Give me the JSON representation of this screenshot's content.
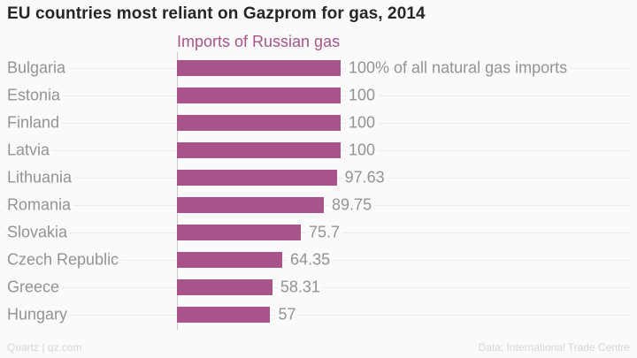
{
  "header": {
    "title": "EU countries most reliant on Gazprom for gas, 2014"
  },
  "chart_data": {
    "type": "bar",
    "orientation": "horizontal",
    "title": "EU countries most reliant on Gazprom for gas, 2014",
    "series_label": "Imports of Russian gas",
    "categories": [
      "Bulgaria",
      "Estonia",
      "Finland",
      "Latvia",
      "Lithuania",
      "Romania",
      "Slovakia",
      "Czech Republic",
      "Greece",
      "Hungary"
    ],
    "values": [
      100,
      100,
      100,
      100,
      97.63,
      89.75,
      75.7,
      64.35,
      58.31,
      57
    ],
    "value_labels": [
      "100% of all natural gas imports",
      "100",
      "100",
      "100",
      "97.63",
      "89.75",
      "75.7",
      "64.35",
      "58.31",
      "57"
    ],
    "xlabel": "",
    "ylabel": "",
    "xlim": [
      0,
      100
    ],
    "grid": true,
    "legend_position": "top"
  },
  "footer": {
    "left": "Quartz | qz.com",
    "right": "Data: International Trade Centre"
  },
  "colors": {
    "bar": "#a8548a",
    "label": "#939393",
    "title": "#262626",
    "axis": "#c9c9c9",
    "gridline": "#ebebeb",
    "footer": "#d6d6d6",
    "background": "#fafafa"
  }
}
